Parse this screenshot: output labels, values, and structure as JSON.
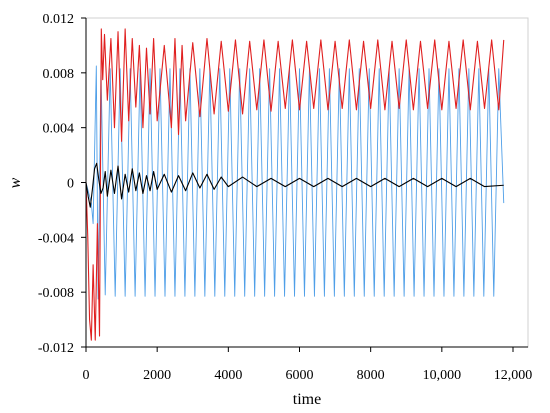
{
  "chart_data": {
    "type": "line",
    "title": "",
    "xlabel": "time",
    "ylabel": "w",
    "xlim": [
      0,
      12000
    ],
    "ylim": [
      -0.012,
      0.012
    ],
    "x_ticks": [
      {
        "value": 0,
        "label": "0"
      },
      {
        "value": 2000,
        "label": "2000"
      },
      {
        "value": 4000,
        "label": "4000"
      },
      {
        "value": 6000,
        "label": "6000"
      },
      {
        "value": 8000,
        "label": "8000"
      },
      {
        "value": 10000,
        "label": "10,000"
      },
      {
        "value": 12000,
        "label": "12,000"
      }
    ],
    "y_ticks": [
      {
        "value": 0.012,
        "label": "0.012"
      },
      {
        "value": 0.008,
        "label": "0.008"
      },
      {
        "value": 0.004,
        "label": "0.004"
      },
      {
        "value": 0,
        "label": "0"
      },
      {
        "value": -0.004,
        "label": "-0.004"
      },
      {
        "value": -0.008,
        "label": "-0.008"
      },
      {
        "value": -0.012,
        "label": "-0.012"
      }
    ],
    "grid": false,
    "legend": "none",
    "series": [
      {
        "color": "#4f9fe8",
        "x": [
          0,
          150,
          200,
          290,
          340,
          420,
          540,
          680,
          820,
          960,
          1100,
          1240,
          1380,
          1520,
          1660,
          1800,
          1940,
          2080,
          2220,
          2360,
          2500,
          2640,
          2780,
          2920,
          3060,
          3200,
          3340,
          3480,
          3620,
          3760,
          3900,
          4040,
          4180,
          4320,
          4460,
          4600,
          4740,
          4880,
          5020,
          5160,
          5300,
          5440,
          5580,
          5720,
          5860,
          6000,
          6140,
          6280,
          6420,
          6560,
          6700,
          6840,
          6980,
          7120,
          7260,
          7400,
          7540,
          7680,
          7820,
          7960,
          8100,
          8240,
          8380,
          8520,
          8660,
          8800,
          8940,
          9080,
          9220,
          9360,
          9500,
          9640,
          9780,
          9920,
          10060,
          10200,
          10340,
          10480,
          10620,
          10760,
          10900,
          11040,
          11180,
          11320,
          11460,
          11600,
          11740
        ],
        "y": [
          0,
          -0.0015,
          -0.003,
          0.0085,
          -0.0085,
          0.0083,
          -0.0082,
          0.0083,
          -0.0083,
          0.0083,
          -0.0083,
          0.0083,
          -0.0083,
          0.0083,
          -0.0083,
          0.0083,
          -0.0083,
          0.0083,
          -0.0083,
          0.0083,
          -0.0083,
          0.0083,
          -0.0083,
          0.0083,
          -0.0083,
          0.0083,
          -0.0083,
          0.0083,
          -0.0083,
          0.0083,
          -0.0083,
          0.0083,
          -0.0083,
          0.0083,
          -0.0083,
          0.0083,
          -0.0083,
          0.0083,
          -0.0083,
          0.0083,
          -0.0083,
          0.0083,
          -0.0083,
          0.0083,
          -0.0083,
          0.0083,
          -0.0083,
          0.0083,
          -0.0083,
          0.0083,
          -0.0083,
          0.0083,
          -0.0083,
          0.0083,
          -0.0083,
          0.0083,
          -0.0083,
          0.0083,
          -0.0083,
          0.0083,
          -0.0083,
          0.0083,
          -0.0083,
          0.0083,
          -0.0083,
          0.0083,
          -0.0083,
          0.0083,
          -0.0083,
          0.0083,
          -0.0083,
          0.0083,
          -0.0083,
          0.0083,
          -0.0083,
          0.0083,
          -0.0083,
          0.0083,
          -0.0083,
          0.0083,
          -0.0083,
          0.0083,
          -0.0083,
          0.0083,
          -0.0083,
          0.0083,
          -0.0015
        ]
      },
      {
        "color": "#e02020",
        "x": [
          0,
          50,
          100,
          150,
          200,
          260,
          320,
          380,
          430,
          470,
          520,
          600,
          700,
          800,
          900,
          1000,
          1100,
          1200,
          1300,
          1400,
          1500,
          1600,
          1700,
          1800,
          1900,
          2000,
          2200,
          2400,
          2500,
          2600,
          2700,
          2800,
          3000,
          3200,
          3400,
          3600,
          3800,
          4000,
          4200,
          4400,
          4600,
          4800,
          5000,
          5200,
          5400,
          5600,
          5800,
          6000,
          6200,
          6400,
          6600,
          6800,
          7000,
          7200,
          7400,
          7600,
          7800,
          8000,
          8200,
          8400,
          8600,
          8800,
          9000,
          9200,
          9400,
          9600,
          9800,
          10000,
          10200,
          10400,
          10600,
          10800,
          11000,
          11200,
          11400,
          11600,
          11740
        ],
        "y": [
          0,
          -0.004,
          -0.01,
          -0.0115,
          -0.006,
          -0.0115,
          -0.003,
          -0.0112,
          0.0112,
          0.0075,
          0.0108,
          0.006,
          0.0105,
          0.004,
          0.011,
          0.003,
          0.0112,
          0.0045,
          0.0105,
          0.0055,
          0.01,
          0.004,
          0.0098,
          0.005,
          0.0105,
          0.0045,
          0.01,
          0.004,
          0.0105,
          0.0035,
          0.01,
          0.0045,
          0.0102,
          0.0048,
          0.0105,
          0.005,
          0.0103,
          0.0052,
          0.0104,
          0.005,
          0.0103,
          0.0053,
          0.0104,
          0.0052,
          0.0103,
          0.0054,
          0.0104,
          0.0053,
          0.0103,
          0.0054,
          0.0104,
          0.0053,
          0.0103,
          0.0054,
          0.0104,
          0.0053,
          0.0103,
          0.0054,
          0.0104,
          0.0053,
          0.0103,
          0.0054,
          0.0104,
          0.0053,
          0.0103,
          0.0054,
          0.0104,
          0.0053,
          0.0103,
          0.0054,
          0.0104,
          0.0053,
          0.0103,
          0.0054,
          0.0104,
          0.0053,
          0.0104
        ]
      },
      {
        "color": "#000000",
        "x": [
          0,
          60,
          120,
          180,
          240,
          300,
          360,
          420,
          480,
          540,
          600,
          700,
          800,
          900,
          1000,
          1100,
          1200,
          1300,
          1400,
          1500,
          1600,
          1700,
          1800,
          1900,
          2000,
          2200,
          2400,
          2600,
          2800,
          3000,
          3200,
          3400,
          3600,
          3800,
          4000,
          4400,
          4800,
          5200,
          5600,
          6000,
          6400,
          6800,
          7200,
          7600,
          8000,
          8400,
          8800,
          9200,
          9600,
          10000,
          10400,
          10800,
          11200,
          11740
        ],
        "y": [
          0,
          -0.001,
          -0.0018,
          -0.0005,
          0.001,
          0.0014,
          0.0002,
          -0.0008,
          -0.0004,
          0.0008,
          -0.001,
          0.0009,
          -0.0008,
          0.0012,
          -0.0012,
          0.0006,
          -0.0007,
          0.001,
          -0.0006,
          0.0007,
          -0.0008,
          0.0005,
          -0.0006,
          0.0008,
          -0.0005,
          0.0006,
          -0.0007,
          0.0005,
          -0.0006,
          0.0007,
          -0.0004,
          0.0006,
          -0.0005,
          0.0004,
          -0.0003,
          0.0004,
          -0.0003,
          0.0003,
          -0.0003,
          0.0003,
          -0.0003,
          0.0003,
          -0.0003,
          0.0003,
          -0.0003,
          0.0003,
          -0.0003,
          0.0003,
          -0.0003,
          0.0003,
          -0.0003,
          0.0003,
          -0.0003,
          -0.0002
        ]
      }
    ]
  }
}
